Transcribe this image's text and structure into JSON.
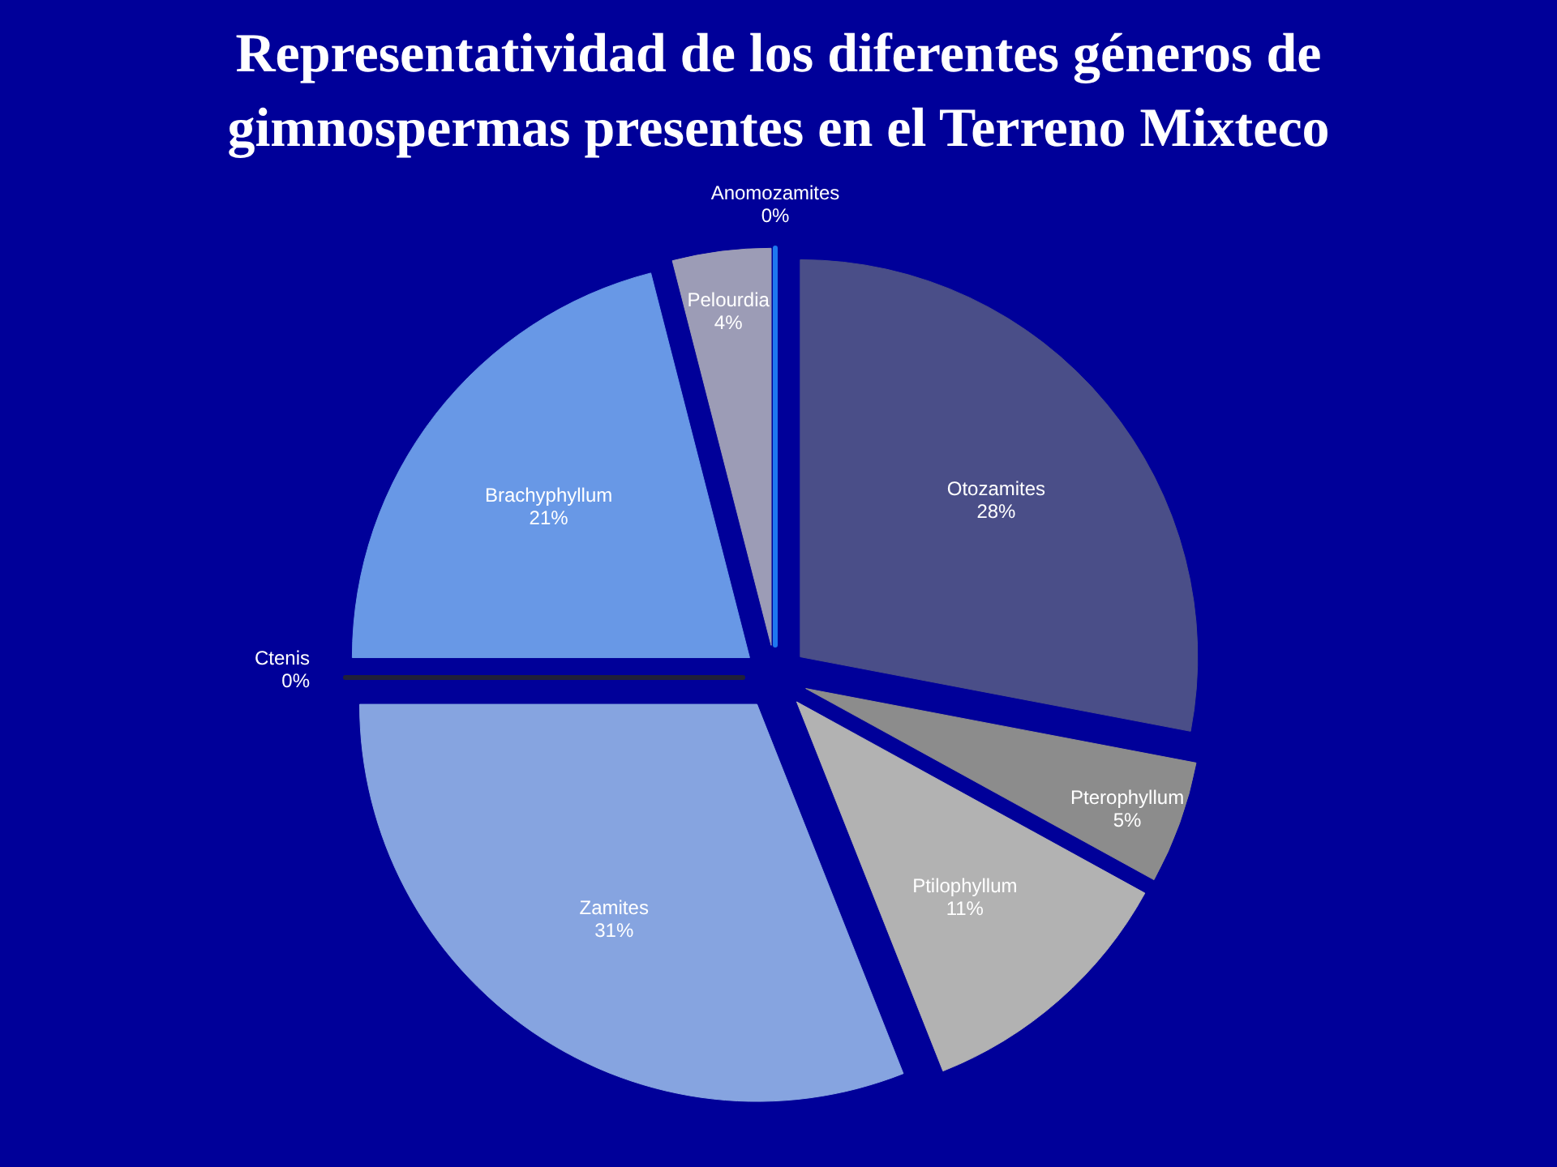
{
  "chart_data": {
    "type": "pie",
    "title": "Representatividad de los diferentes géneros de gimnospermas presentes en el Terreno Mixteco",
    "categories": [
      "Otozamites",
      "Pterophyllum",
      "Ptilophyllum",
      "Zamites",
      "Ctenis",
      "Brachyphyllum",
      "Pelourdia",
      "Anomozamites"
    ],
    "values": [
      28,
      5,
      11,
      31,
      0,
      21,
      4,
      0
    ],
    "colors": [
      "#4a4e88",
      "#8c8c8c",
      "#b2b2b2",
      "#86a4e0",
      "#20203a",
      "#6898e6",
      "#9c9cb6",
      "#1e78f0"
    ],
    "value_labels": [
      "28%",
      "5%",
      "11%",
      "31%",
      "0%",
      "21%",
      "4%",
      "0%"
    ]
  }
}
